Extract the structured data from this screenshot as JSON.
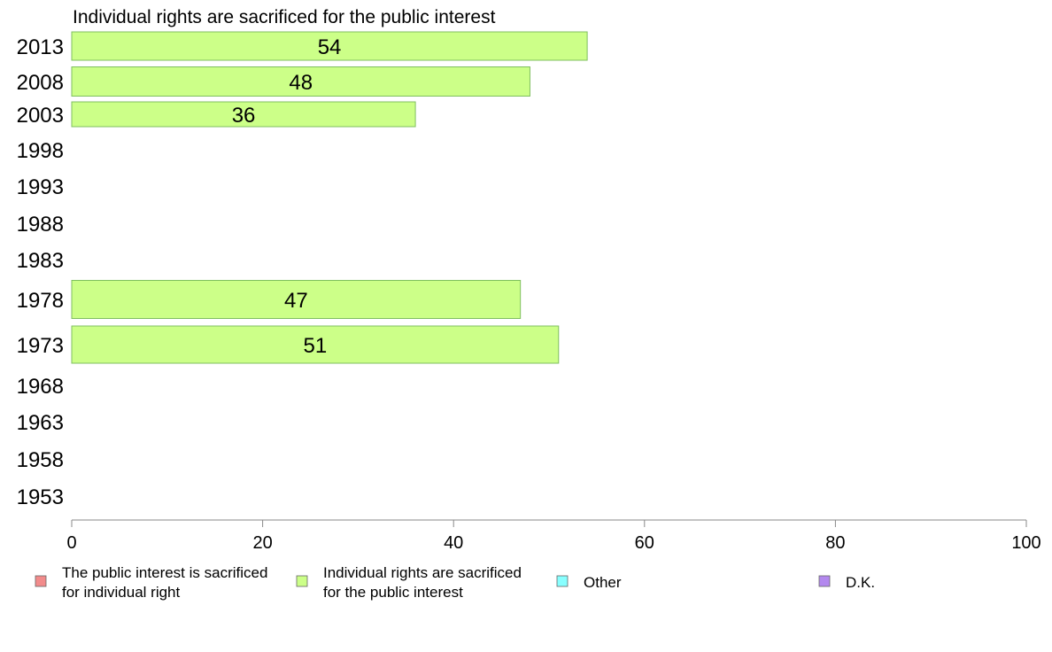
{
  "chart_data": {
    "type": "bar",
    "orientation": "horizontal",
    "title": "Individual rights are sacrificed for the public interest",
    "categories": [
      "2013",
      "2008",
      "2003",
      "1998",
      "1993",
      "1988",
      "1983",
      "1978",
      "1973",
      "1968",
      "1963",
      "1958",
      "1953"
    ],
    "series": [
      {
        "name": "Individual rights are sacrificed for the public interest",
        "color": "#ccff88",
        "stroke": "#7fbf5f",
        "values": [
          54,
          48,
          36,
          null,
          null,
          null,
          null,
          47,
          51,
          null,
          null,
          null,
          null
        ],
        "labels": [
          "54",
          "48",
          "36",
          "",
          "",
          "",
          "",
          "47",
          "51",
          "",
          "",
          "",
          ""
        ]
      }
    ],
    "xlim": [
      0,
      100
    ],
    "xticks": [
      "0",
      "20",
      "40",
      "60",
      "80",
      "100"
    ],
    "xlabel": "",
    "ylabel": "",
    "grid": false,
    "legend": {
      "position": "bottom",
      "items": [
        {
          "label_line1": "The public interest is sacrificed",
          "label_line2": "for individual right",
          "color": "#f28b8b"
        },
        {
          "label_line1": "Individual rights are sacrificed",
          "label_line2": "for the public interest",
          "color": "#ccff88"
        },
        {
          "label_line1": "Other",
          "label_line2": "",
          "color": "#88ffff"
        },
        {
          "label_line1": "D.K.",
          "label_line2": "",
          "color": "#b388ee"
        }
      ]
    }
  }
}
